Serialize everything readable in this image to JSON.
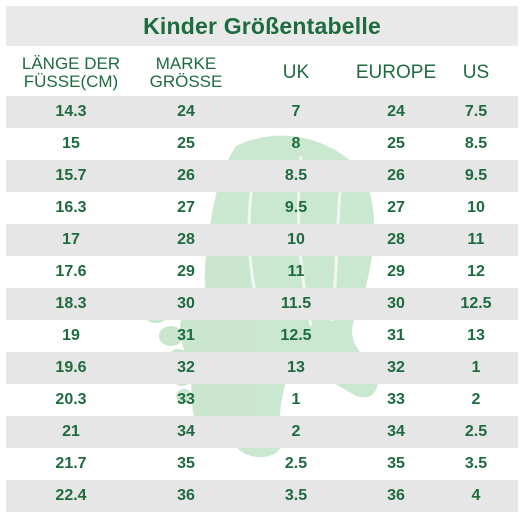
{
  "title": "Kinder Größentabelle",
  "headers": [
    "LÄNGE DER\nFÜSSE(CM)",
    "MARKE\nGRÖSSE",
    "UK",
    "EUROPE",
    "US"
  ],
  "rows": [
    [
      "14.3",
      "24",
      "7",
      "24",
      "7.5"
    ],
    [
      "15",
      "25",
      "8",
      "25",
      "8.5"
    ],
    [
      "15.7",
      "26",
      "8.5",
      "26",
      "9.5"
    ],
    [
      "16.3",
      "27",
      "9.5",
      "27",
      "10"
    ],
    [
      "17",
      "28",
      "10",
      "28",
      "11"
    ],
    [
      "17.6",
      "29",
      "11",
      "29",
      "12"
    ],
    [
      "18.3",
      "30",
      "11.5",
      "30",
      "12.5"
    ],
    [
      "19",
      "31",
      "12.5",
      "31",
      "13"
    ],
    [
      "19.6",
      "32",
      "13",
      "32",
      "1"
    ],
    [
      "20.3",
      "33",
      "1",
      "33",
      "2"
    ],
    [
      "21",
      "34",
      "2",
      "34",
      "2.5"
    ],
    [
      "21.7",
      "35",
      "2.5",
      "35",
      "3.5"
    ],
    [
      "22.4",
      "36",
      "3.5",
      "36",
      "4"
    ]
  ],
  "colors": {
    "text": "#1d6b3f",
    "stripe": "#e6e6e6",
    "title_bg": "#e9e9e9",
    "watermark": "#9fd3a8"
  },
  "icons": {
    "watermark": "foot-and-leg-icon"
  }
}
